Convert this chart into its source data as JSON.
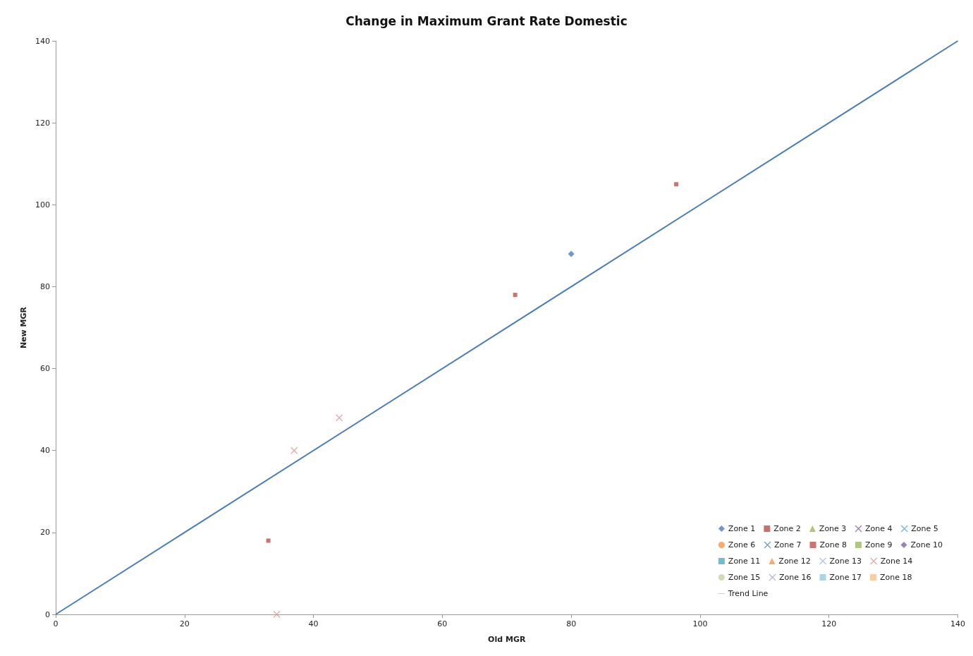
{
  "chart_data": {
    "type": "scatter",
    "title": "Change in Maximum Grant Rate Domestic",
    "xlabel": "Old MGR",
    "ylabel": "New MGR",
    "xlim": [
      0,
      140
    ],
    "ylim": [
      0,
      140
    ],
    "xticks": [
      0,
      20,
      40,
      60,
      80,
      100,
      120,
      140
    ],
    "yticks": [
      0,
      20,
      40,
      60,
      80,
      100,
      120,
      140
    ],
    "grid": false,
    "legend": "bottom right",
    "series": [
      {
        "name": "Zone 1",
        "color": "#4a7ebb",
        "marker": "diamond",
        "x": [
          80
        ],
        "values": [
          88
        ]
      },
      {
        "name": "Zone 2",
        "color": "#be4b48",
        "marker": "square"
      },
      {
        "name": "Zone 3",
        "color": "#98b954",
        "marker": "triangle"
      },
      {
        "name": "Zone 4",
        "color": "#7d60a0",
        "marker": "cross"
      },
      {
        "name": "Zone 5",
        "color": "#46aac5",
        "marker": "cross"
      },
      {
        "name": "Zone 6",
        "color": "#f79646",
        "marker": "circle"
      },
      {
        "name": "Zone 7",
        "color": "#4f81bd",
        "marker": "cross"
      },
      {
        "name": "Zone 8",
        "color": "#c0504d",
        "marker": "square",
        "x": [
          33,
          71.3,
          96.3
        ],
        "values": [
          18,
          78,
          105
        ]
      },
      {
        "name": "Zone 9",
        "color": "#9bbb59",
        "marker": "square"
      },
      {
        "name": "Zone 10",
        "color": "#8064a2",
        "marker": "diamond"
      },
      {
        "name": "Zone 11",
        "color": "#4bacc6",
        "marker": "square"
      },
      {
        "name": "Zone 12",
        "color": "#f79646",
        "marker": "triangle"
      },
      {
        "name": "Zone 13",
        "color": "#a5b6d9",
        "marker": "cross"
      },
      {
        "name": "Zone 14",
        "color": "#d99694",
        "marker": "cross",
        "x": [
          37,
          44,
          34.3
        ],
        "values": [
          40,
          48,
          0
        ]
      },
      {
        "name": "Zone 15",
        "color": "#c3d69b",
        "marker": "circle"
      },
      {
        "name": "Zone 16",
        "color": "#b3a2c7",
        "marker": "cross"
      },
      {
        "name": "Zone 17",
        "color": "#93cddd",
        "marker": "square"
      },
      {
        "name": "Zone 18",
        "color": "#fac08f",
        "marker": "square"
      },
      {
        "name": "Trend Line",
        "type": "line",
        "color": "#4a7ebb",
        "marker": "none",
        "line_style": "solid",
        "x": [
          0,
          140
        ],
        "values": [
          0,
          140
        ]
      }
    ]
  }
}
